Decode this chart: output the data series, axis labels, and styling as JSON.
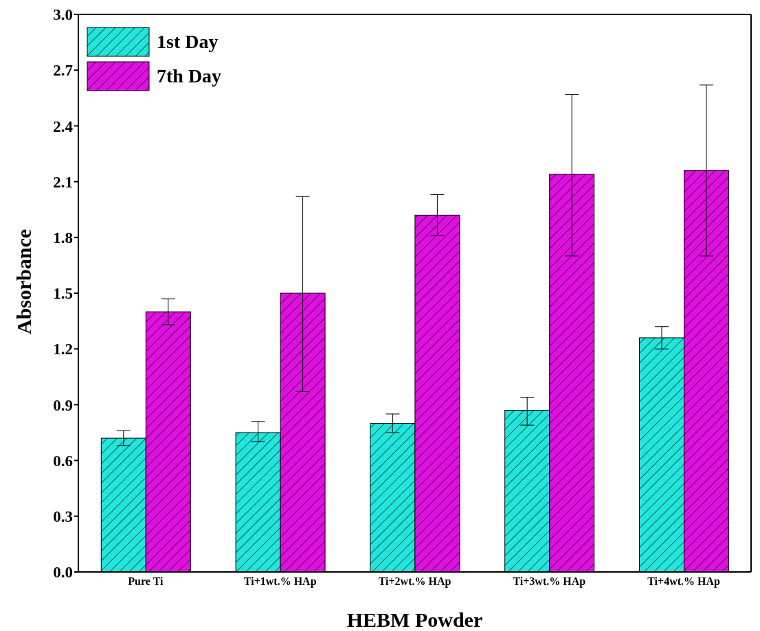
{
  "chart_data": {
    "type": "bar",
    "xlabel": "HEBM Powder",
    "ylabel": "Absorbance",
    "categories": [
      "Pure Ti",
      "Ti+1wt.% HAp",
      "Ti+2wt.% HAp",
      "Ti+3wt.% HAp",
      "Ti+4wt.% HAp"
    ],
    "series": [
      {
        "name": "1st Day",
        "color": "#22e6dc",
        "values": [
          0.72,
          0.75,
          0.8,
          0.87,
          1.26
        ],
        "errors": [
          [
            0.68,
            0.76
          ],
          [
            0.7,
            0.81
          ],
          [
            0.75,
            0.85
          ],
          [
            0.79,
            0.94
          ],
          [
            1.2,
            1.32
          ]
        ]
      },
      {
        "name": "7th Day",
        "color": "#e010e0",
        "values": [
          1.4,
          1.5,
          1.92,
          2.14,
          2.16
        ],
        "errors": [
          [
            1.33,
            1.47
          ],
          [
            0.97,
            2.02
          ],
          [
            1.81,
            2.03
          ],
          [
            1.7,
            2.57
          ],
          [
            1.7,
            2.62
          ]
        ]
      }
    ],
    "ylim": [
      0,
      3
    ],
    "yticks": [
      {
        "value": 0,
        "label": "0.0"
      },
      0.3,
      0.6,
      0.9,
      1.2,
      1.5,
      1.8,
      2.1,
      2.4,
      2.7,
      {
        "value": 3,
        "label": "3.0"
      }
    ],
    "legend": "top left",
    "grid": false
  }
}
